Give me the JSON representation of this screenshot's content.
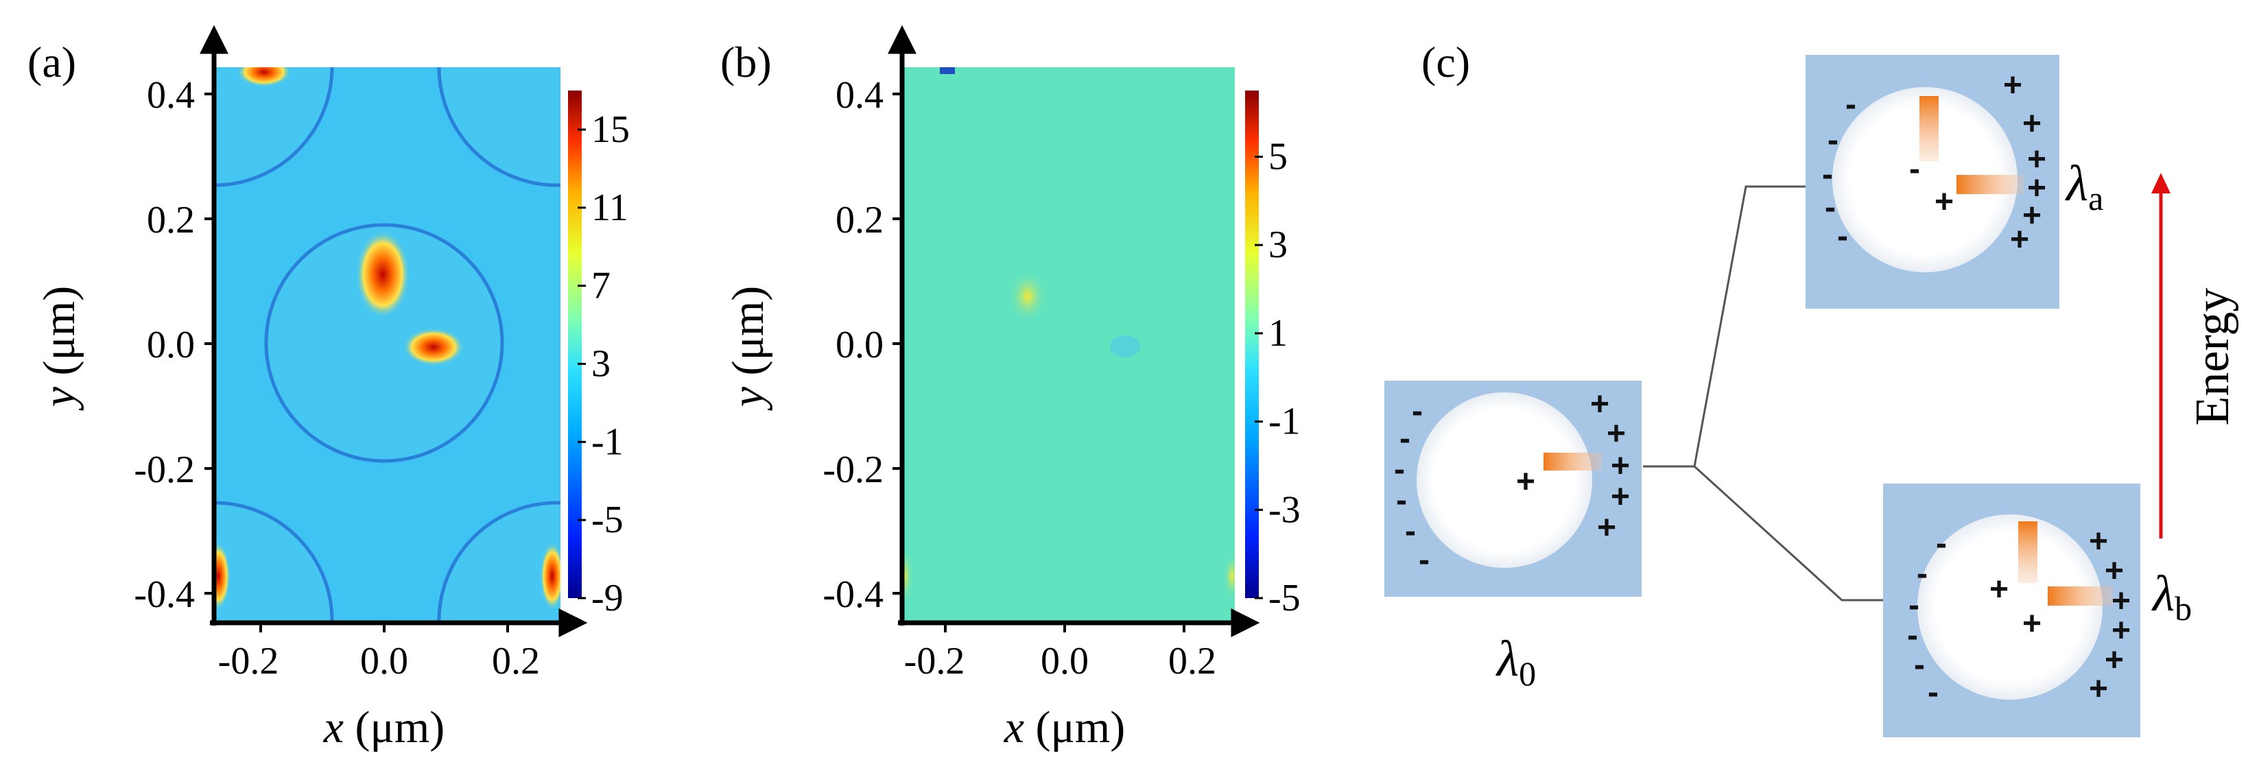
{
  "panels": {
    "a": {
      "label": "(a)",
      "y_ticks": [
        "0.4",
        "0.2",
        "0.0",
        "-0.2",
        "-0.4"
      ],
      "x_ticks": [
        "-0.2",
        "0.0",
        "0.2"
      ],
      "colorbar_ticks": [
        "15",
        "11",
        "7",
        "3",
        "-1",
        "-5",
        "-9"
      ],
      "colorbar_range": [
        -9,
        17
      ],
      "x_label_var": "x",
      "x_label_unit": " (μm)",
      "y_label_var": "y",
      "y_label_unit": " (μm)"
    },
    "b": {
      "label": "(b)",
      "y_ticks": [
        "0.4",
        "0.2",
        "0.0",
        "-0.2",
        "-0.4"
      ],
      "x_ticks": [
        "-0.2",
        "0.0",
        "0.2"
      ],
      "colorbar_ticks": [
        "5",
        "3",
        "1",
        "-1",
        "-3",
        "-5"
      ],
      "colorbar_range": [
        -5,
        6.5
      ],
      "x_label_var": "x",
      "x_label_unit": " (μm)",
      "y_label_var": "y",
      "y_label_unit": " (μm)"
    },
    "c": {
      "label": "(c)",
      "lambda_symbol": "λ",
      "lambda_0_sub": "0",
      "lambda_a_sub": "a",
      "lambda_b_sub": "b",
      "energy_label": "Energy",
      "minus": "-",
      "plus": "+"
    }
  },
  "colors": {
    "field_bg_a": "#3fc3f2",
    "field_bg_b": "#62e3c0",
    "circle_edge": "#2a7fd8",
    "hot": "#d40000",
    "box_fill": "#a7c6e6",
    "arrow_red": "#e01010",
    "line_gray": "#555555"
  }
}
